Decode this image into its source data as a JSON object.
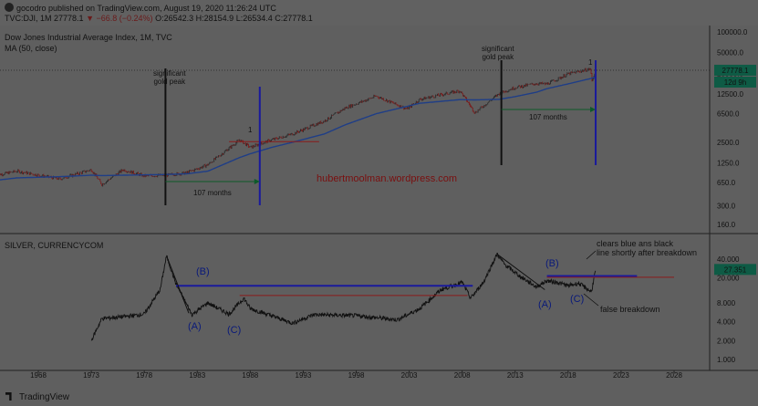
{
  "header": {
    "publisher": "gocodro published on TradingView.com, August 19, 2020 11:26:24 UTC",
    "symbol": "TVC:DJI, 1M",
    "last": "27778.1",
    "change": "▼ −66.8 (−0.24%)",
    "open": "O:26542.3",
    "high": "H:28154.9",
    "low": "L:26534.4",
    "close": "C:27778.1"
  },
  "colors": {
    "price_up": "#2a2a2a",
    "price_down": "#7a1a1a",
    "ma": "#1f3e87",
    "blue_line": "#1a1a9c",
    "red_line": "#8a1a1a",
    "tag_green": "#0e5b45",
    "bg": "#5f5f5f"
  },
  "top_pane": {
    "title": "Dow Jones Industrial Average Index, 1M, TVC",
    "ma_label": "MA (50, close)",
    "price_tag": "27778.1",
    "countdown_tag": "12d 9h",
    "annotations": {
      "gold_peak_1980": "significant\ngold peak",
      "gold_peak_2011": "significant\ngold peak",
      "months_1": "107 months",
      "months_2": "107 months",
      "marker_1987": "1",
      "marker_2020": "1",
      "watermark": "hubertmoolman.wordpress.com"
    }
  },
  "bottom_pane": {
    "title": "SILVER, CURRENCYCOM",
    "price_tag": "27.351",
    "annotations": {
      "A1": "(A)",
      "B1": "(B)",
      "C1": "(C)",
      "A2": "(A)",
      "B2": "(B)",
      "C2": "(C)",
      "clears": "clears blue ans black\nline shortly after breakdown",
      "false_breakdown": "false breakdown"
    }
  },
  "footer": {
    "brand": "TradingView"
  },
  "chart_data": [
    {
      "type": "line",
      "title": "Dow Jones Industrial Average Index, 1M, TVC",
      "scale": "log",
      "ylim": [
        130,
        110000
      ],
      "yticks": [
        "100000.0",
        "50000.0",
        "25000.0",
        "12500.0",
        "6500.0",
        "2500.0",
        "1250.0",
        "650.0",
        "300.0",
        "160.0"
      ],
      "x": [
        1964,
        1966,
        1970,
        1973,
        1974,
        1976,
        1978,
        1980,
        1982,
        1984,
        1987,
        1988,
        1990,
        1992,
        1995,
        1997,
        1999.9,
        2002.8,
        2004,
        2007.8,
        2009.2,
        2011.5,
        2013,
        2015,
        2016,
        2018,
        2020.1,
        2020.25,
        2020.6
      ],
      "series": [
        {
          "name": "DJI",
          "values": [
            830,
            950,
            730,
            1000,
            610,
            1000,
            810,
            830,
            900,
            1180,
            2700,
            2100,
            2700,
            3300,
            5100,
            7900,
            11700,
            7600,
            10500,
            14000,
            6700,
            12800,
            15600,
            17800,
            17500,
            24500,
            29000,
            19500,
            27778
          ]
        },
        {
          "name": "MA (50, close)",
          "values": [
            700,
            760,
            790,
            830,
            820,
            830,
            840,
            850,
            870,
            950,
            1500,
            1700,
            2100,
            2500,
            3300,
            4500,
            6500,
            8300,
            9200,
            10400,
            10300,
            10500,
            11500,
            13300,
            15000,
            17600,
            21000,
            21400,
            22000
          ]
        }
      ],
      "vertical_markers": [
        1980.0,
        1988.9,
        2011.7,
        2020.6
      ],
      "annotations": [
        "significant gold peak",
        "107 months",
        "1",
        "hubertmoolman.wordpress.com"
      ]
    },
    {
      "type": "line",
      "title": "SILVER, CURRENCYCOM",
      "scale": "log",
      "ylim": [
        0.8,
        60
      ],
      "yticks": [
        "40.000",
        "20.000",
        "8.000",
        "4.000",
        "2.000",
        "1.000"
      ],
      "x": [
        1973,
        1974,
        1976,
        1978,
        1979.5,
        1980.1,
        1981,
        1982.5,
        1984,
        1986,
        1987.4,
        1988,
        1990,
        1992,
        1994,
        1998,
        2001.9,
        2004,
        2006,
        2008,
        2008.8,
        2010,
        2011.3,
        2012,
        2013.5,
        2015,
        2016,
        2017,
        2018,
        2019,
        2020.2,
        2020.6
      ],
      "series": [
        {
          "name": "SILVER",
          "values": [
            2.0,
            4.5,
            4.8,
            5.3,
            13,
            45,
            16,
            5.2,
            8.0,
            5.3,
            9.5,
            6.5,
            5.0,
            3.8,
            5.2,
            5.0,
            4.3,
            6.5,
            13,
            17,
            9.5,
            17,
            48,
            33,
            21,
            14.5,
            18,
            17,
            15,
            16.5,
            12,
            27.351
          ]
        }
      ],
      "horizontal_lines": [
        {
          "color": "blue",
          "y": 15.0,
          "x": [
            1981,
            2009
          ]
        },
        {
          "color": "red",
          "y": 10.5,
          "x": [
            1987,
            2008.5
          ]
        },
        {
          "color": "blue",
          "y": 21.5,
          "x": [
            2016,
            2024.5
          ]
        },
        {
          "color": "red",
          "y": 20.5,
          "x": [
            2016,
            2028
          ]
        }
      ],
      "annotations": [
        "(A)",
        "(B)",
        "(C)",
        "clears blue ans black line shortly after breakdown",
        "false breakdown"
      ]
    }
  ],
  "x_axis": {
    "ticks": [
      "1968",
      "1973",
      "1978",
      "1983",
      "1988",
      "1993",
      "1998",
      "2003",
      "2008",
      "2013",
      "2018",
      "2023",
      "2028"
    ]
  }
}
